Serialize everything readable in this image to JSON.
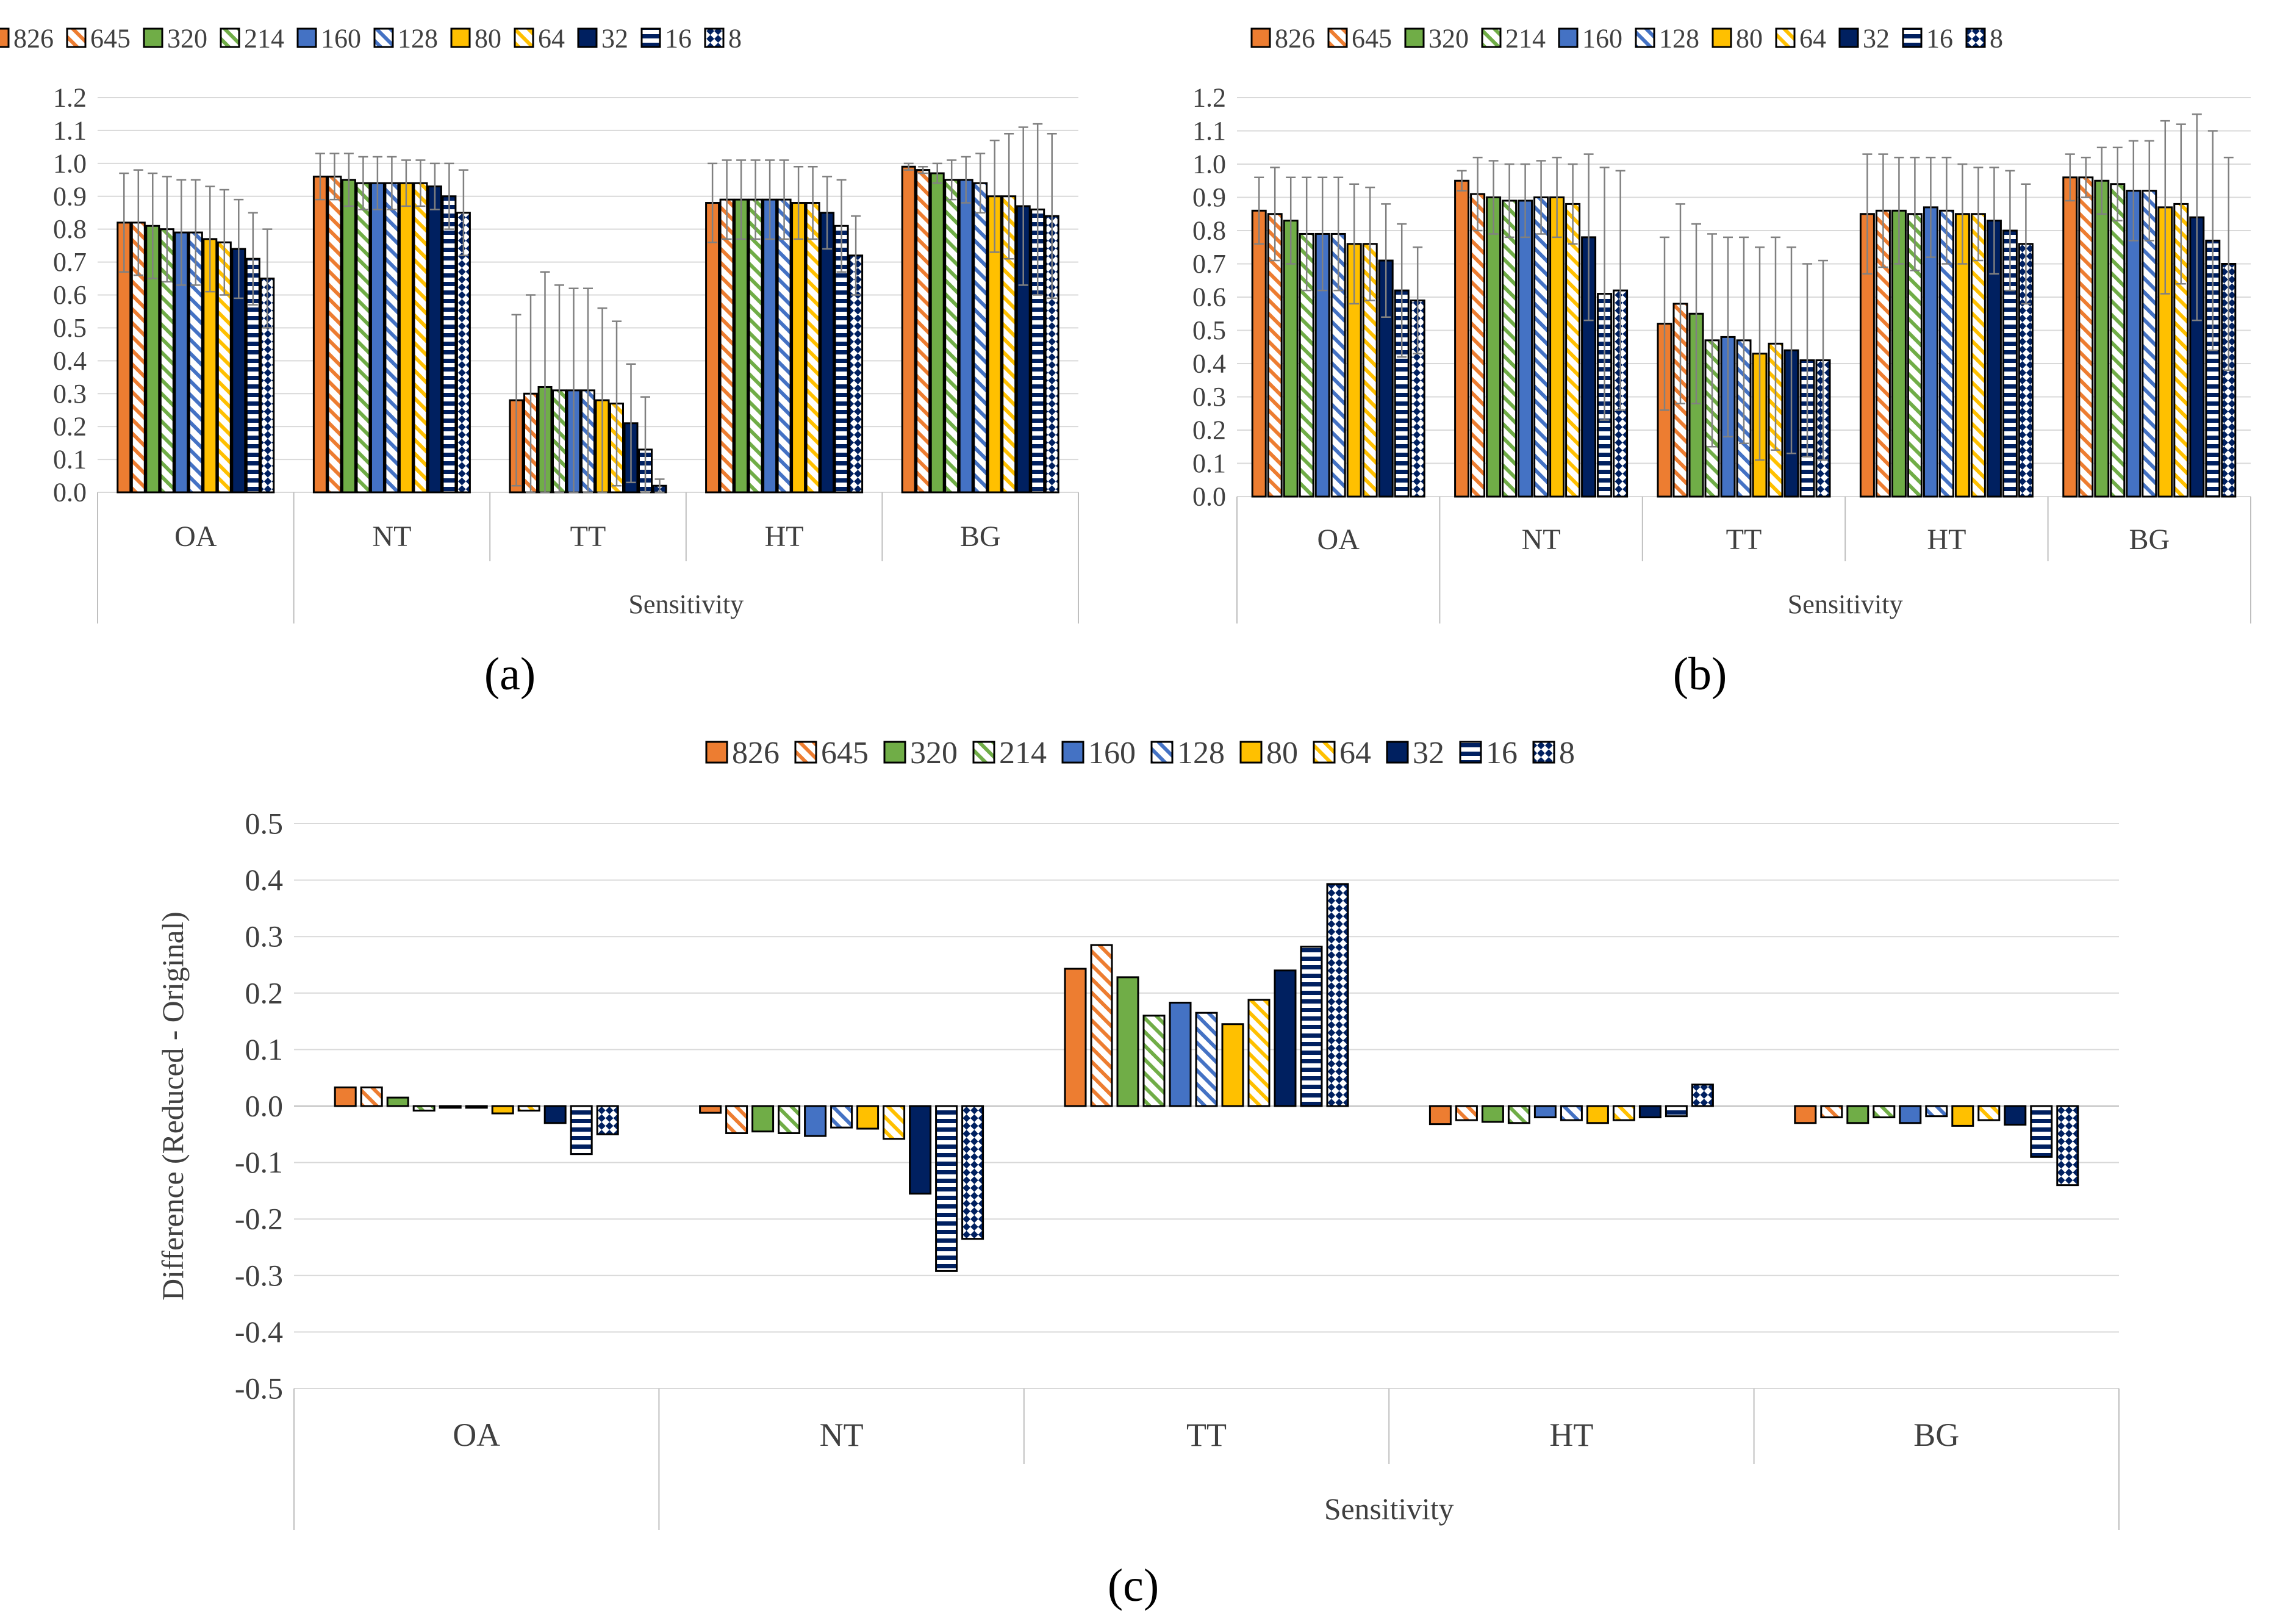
{
  "chart_data": [
    {
      "id": "a",
      "type": "bar",
      "panel_label": "(a)",
      "title": "",
      "xlabel": "Sensitivity",
      "ylabel": "",
      "ylim": [
        0.0,
        1.2
      ],
      "ytick_step": 0.1,
      "ytick_decimals": 1,
      "grid": true,
      "legend_position": "top",
      "error_bars": true,
      "categories": [
        "OA",
        "NT",
        "TT",
        "HT",
        "BG"
      ],
      "series": [
        {
          "name": "826",
          "values": [
            0.82,
            0.96,
            0.28,
            0.88,
            0.99
          ],
          "errors": [
            0.15,
            0.07,
            0.26,
            0.12,
            0.01
          ]
        },
        {
          "name": "645",
          "values": [
            0.82,
            0.96,
            0.3,
            0.89,
            0.98
          ],
          "errors": [
            0.16,
            0.07,
            0.3,
            0.12,
            0.01
          ]
        },
        {
          "name": "320",
          "values": [
            0.81,
            0.95,
            0.32,
            0.89,
            0.97
          ],
          "errors": [
            0.16,
            0.08,
            0.35,
            0.12,
            0.03
          ]
        },
        {
          "name": "214",
          "values": [
            0.8,
            0.94,
            0.31,
            0.89,
            0.95
          ],
          "errors": [
            0.16,
            0.08,
            0.32,
            0.12,
            0.06
          ]
        },
        {
          "name": "160",
          "values": [
            0.79,
            0.94,
            0.31,
            0.89,
            0.95
          ],
          "errors": [
            0.16,
            0.08,
            0.31,
            0.12,
            0.07
          ]
        },
        {
          "name": "128",
          "values": [
            0.79,
            0.94,
            0.31,
            0.89,
            0.94
          ],
          "errors": [
            0.16,
            0.08,
            0.31,
            0.12,
            0.09
          ]
        },
        {
          "name": "80",
          "values": [
            0.77,
            0.94,
            0.28,
            0.88,
            0.9
          ],
          "errors": [
            0.16,
            0.07,
            0.28,
            0.11,
            0.17
          ]
        },
        {
          "name": "64",
          "values": [
            0.76,
            0.94,
            0.27,
            0.88,
            0.9
          ],
          "errors": [
            0.16,
            0.07,
            0.25,
            0.11,
            0.19
          ]
        },
        {
          "name": "32",
          "values": [
            0.74,
            0.93,
            0.21,
            0.85,
            0.87
          ],
          "errors": [
            0.15,
            0.07,
            0.18,
            0.11,
            0.24
          ]
        },
        {
          "name": "16",
          "values": [
            0.71,
            0.9,
            0.13,
            0.81,
            0.86
          ],
          "errors": [
            0.14,
            0.1,
            0.16,
            0.14,
            0.26
          ]
        },
        {
          "name": "8",
          "values": [
            0.65,
            0.85,
            0.02,
            0.72,
            0.84
          ],
          "errors": [
            0.15,
            0.13,
            0.02,
            0.12,
            0.25
          ]
        }
      ]
    },
    {
      "id": "b",
      "type": "bar",
      "panel_label": "(b)",
      "title": "",
      "xlabel": "Sensitivity",
      "ylabel": "",
      "ylim": [
        0.0,
        1.2
      ],
      "ytick_step": 0.1,
      "ytick_decimals": 1,
      "grid": true,
      "legend_position": "top",
      "error_bars": true,
      "categories": [
        "OA",
        "NT",
        "TT",
        "HT",
        "BG"
      ],
      "series": [
        {
          "name": "826",
          "values": [
            0.86,
            0.95,
            0.52,
            0.85,
            0.96
          ],
          "errors": [
            0.1,
            0.03,
            0.26,
            0.18,
            0.07
          ]
        },
        {
          "name": "645",
          "values": [
            0.85,
            0.91,
            0.58,
            0.86,
            0.96
          ],
          "errors": [
            0.14,
            0.11,
            0.3,
            0.17,
            0.06
          ]
        },
        {
          "name": "320",
          "values": [
            0.83,
            0.9,
            0.55,
            0.86,
            0.95
          ],
          "errors": [
            0.13,
            0.11,
            0.27,
            0.16,
            0.1
          ]
        },
        {
          "name": "214",
          "values": [
            0.79,
            0.89,
            0.47,
            0.85,
            0.94
          ],
          "errors": [
            0.17,
            0.11,
            0.32,
            0.17,
            0.11
          ]
        },
        {
          "name": "160",
          "values": [
            0.79,
            0.89,
            0.48,
            0.87,
            0.92
          ],
          "errors": [
            0.17,
            0.11,
            0.3,
            0.15,
            0.15
          ]
        },
        {
          "name": "128",
          "values": [
            0.79,
            0.9,
            0.47,
            0.86,
            0.92
          ],
          "errors": [
            0.17,
            0.11,
            0.31,
            0.16,
            0.15
          ]
        },
        {
          "name": "80",
          "values": [
            0.76,
            0.9,
            0.43,
            0.85,
            0.87
          ],
          "errors": [
            0.18,
            0.12,
            0.32,
            0.15,
            0.26
          ]
        },
        {
          "name": "64",
          "values": [
            0.76,
            0.88,
            0.46,
            0.85,
            0.88
          ],
          "errors": [
            0.17,
            0.12,
            0.32,
            0.14,
            0.24
          ]
        },
        {
          "name": "32",
          "values": [
            0.71,
            0.78,
            0.44,
            0.83,
            0.84
          ],
          "errors": [
            0.17,
            0.25,
            0.31,
            0.16,
            0.31
          ]
        },
        {
          "name": "16",
          "values": [
            0.62,
            0.61,
            0.41,
            0.8,
            0.77
          ],
          "errors": [
            0.2,
            0.38,
            0.29,
            0.18,
            0.33
          ]
        },
        {
          "name": "8",
          "values": [
            0.59,
            0.62,
            0.41,
            0.76,
            0.7
          ],
          "errors": [
            0.16,
            0.36,
            0.3,
            0.18,
            0.32
          ]
        }
      ]
    },
    {
      "id": "c",
      "type": "bar",
      "panel_label": "(c)",
      "title": "",
      "xlabel": "Sensitivity",
      "ylabel": "Difference (Reduced - Original)",
      "ylim": [
        -0.5,
        0.5
      ],
      "ytick_step": 0.1,
      "ytick_decimals": 1,
      "grid": true,
      "legend_position": "top",
      "error_bars": false,
      "categories": [
        "OA",
        "NT",
        "TT",
        "HT",
        "BG"
      ],
      "series": [
        {
          "name": "826",
          "values": [
            0.033,
            -0.012,
            0.243,
            -0.032,
            -0.03
          ]
        },
        {
          "name": "645",
          "values": [
            0.033,
            -0.048,
            0.285,
            -0.025,
            -0.02
          ]
        },
        {
          "name": "320",
          "values": [
            0.015,
            -0.045,
            0.228,
            -0.028,
            -0.03
          ]
        },
        {
          "name": "214",
          "values": [
            -0.008,
            -0.048,
            0.16,
            -0.03,
            -0.02
          ]
        },
        {
          "name": "160",
          "values": [
            -0.003,
            -0.053,
            0.183,
            -0.02,
            -0.03
          ]
        },
        {
          "name": "128",
          "values": [
            -0.003,
            -0.038,
            0.165,
            -0.025,
            -0.018
          ]
        },
        {
          "name": "80",
          "values": [
            -0.013,
            -0.04,
            0.145,
            -0.03,
            -0.035
          ]
        },
        {
          "name": "64",
          "values": [
            -0.008,
            -0.058,
            0.188,
            -0.025,
            -0.025
          ]
        },
        {
          "name": "32",
          "values": [
            -0.03,
            -0.155,
            0.24,
            -0.02,
            -0.033
          ]
        },
        {
          "name": "16",
          "values": [
            -0.085,
            -0.292,
            0.282,
            -0.018,
            -0.09
          ]
        },
        {
          "name": "8",
          "values": [
            -0.05,
            -0.235,
            0.393,
            0.038,
            -0.14
          ]
        }
      ]
    }
  ],
  "legend_styles": [
    {
      "name": "826",
      "color": "#ED7D31",
      "pattern": "solid"
    },
    {
      "name": "645",
      "color": "#ED7D31",
      "pattern": "light-diagonal"
    },
    {
      "name": "320",
      "color": "#70AD47",
      "pattern": "solid"
    },
    {
      "name": "214",
      "color": "#70AD47",
      "pattern": "light-diagonal"
    },
    {
      "name": "160",
      "color": "#4472C4",
      "pattern": "solid"
    },
    {
      "name": "128",
      "color": "#4472C4",
      "pattern": "light-diagonal"
    },
    {
      "name": "80",
      "color": "#FFC000",
      "pattern": "solid"
    },
    {
      "name": "64",
      "color": "#FFC000",
      "pattern": "light-diagonal"
    },
    {
      "name": "32",
      "color": "#002060",
      "pattern": "solid"
    },
    {
      "name": "16",
      "color": "#002060",
      "pattern": "horizontal-stripes"
    },
    {
      "name": "8",
      "color": "#002060",
      "pattern": "checker-diagonal"
    }
  ],
  "colors": {
    "grid": "#D9D9D9",
    "axis": "#BFBFBF",
    "text": "#404040",
    "error_bar": "#808080"
  }
}
